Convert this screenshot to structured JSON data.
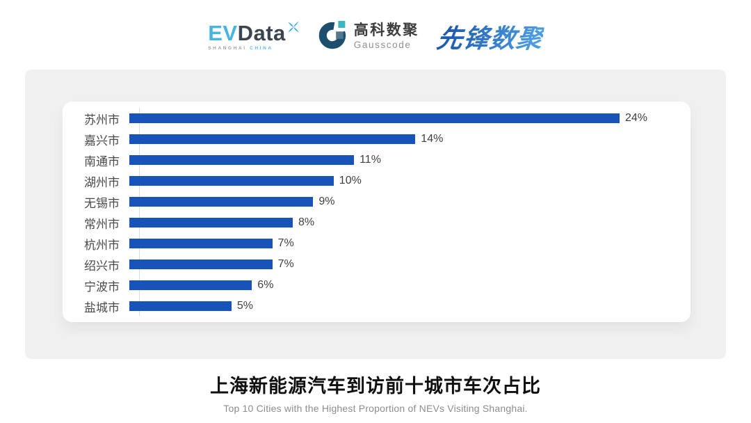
{
  "header": {
    "evdata": {
      "ev": "EV",
      "data": "Data",
      "sub_shanghai": "SHANGHAI",
      "sub_china": "CHINA"
    },
    "gausscode": {
      "name_cn": "高科数聚",
      "name_en": "Gausscode"
    },
    "pioneer": {
      "name": "先锋数聚"
    }
  },
  "colors": {
    "bar": "#1753b8",
    "panel_bg": "#f0f0f1",
    "axis_line": "#dcdcdc",
    "evdata_ev": "#47b5e2",
    "evdata_data": "#3a4550",
    "gausscode_mark": "#1d4e6e",
    "gausscode_teal": "#3ab7c0",
    "pioneer_blue": "#2e75cc"
  },
  "chart_data": {
    "type": "bar",
    "orientation": "horizontal",
    "title": "上海新能源汽车到访前十城市车次占比",
    "subtitle": "Top 10 Cities with the Highest Proportion of  NEVs Visiting Shanghai.",
    "categories": [
      "苏州市",
      "嘉兴市",
      "南通市",
      "湖州市",
      "无锡市",
      "常州市",
      "杭州市",
      "绍兴市",
      "宁波市",
      "盐城市"
    ],
    "values": [
      24,
      14,
      11,
      10,
      9,
      8,
      7,
      7,
      6,
      5
    ],
    "value_suffix": "%",
    "value_labels": [
      "24%",
      "14%",
      "11%",
      "10%",
      "9%",
      "8%",
      "7%",
      "7%",
      "6%",
      "5%"
    ],
    "xlim": [
      0,
      24
    ],
    "grid": false,
    "legend": "none",
    "bar_color": "#1753b8"
  }
}
